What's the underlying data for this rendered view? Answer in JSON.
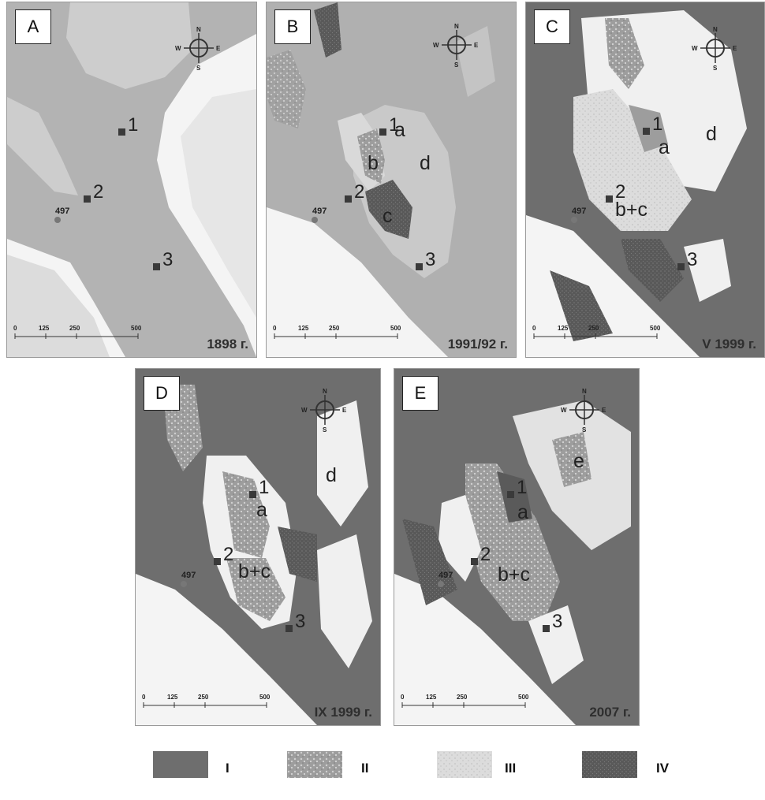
{
  "panels": [
    {
      "letter": "A",
      "year": "1898 г."
    },
    {
      "letter": "B",
      "year": "1991/92 г."
    },
    {
      "letter": "C",
      "year": "V 1999 г."
    },
    {
      "letter": "D",
      "year": "IX 1999 г."
    },
    {
      "letter": "E",
      "year": "2007 г."
    }
  ],
  "site_labels": [
    "1",
    "2",
    "3"
  ],
  "benchmark": "497",
  "zone_labels": {
    "a": "a",
    "b": "b",
    "c": "c",
    "d": "d",
    "bc": "b+c",
    "e": "e"
  },
  "scale_ticks": [
    "0",
    "125",
    "250",
    "500"
  ],
  "compass": {
    "n": "N",
    "s": "S",
    "w": "W",
    "e": "E"
  },
  "legend": [
    {
      "label": "I",
      "pattern": "solid-dark"
    },
    {
      "label": "II",
      "pattern": "mottled"
    },
    {
      "label": "III",
      "pattern": "light-dotted"
    },
    {
      "label": "IV",
      "pattern": "dark-stippled"
    }
  ],
  "colors": {
    "I": "#6e6e6e",
    "II": "#9d9d9d",
    "III": "#d9d9d9",
    "IV": "#595959",
    "background": "#f4f4f4",
    "water_1898": "#b3b3b3"
  }
}
